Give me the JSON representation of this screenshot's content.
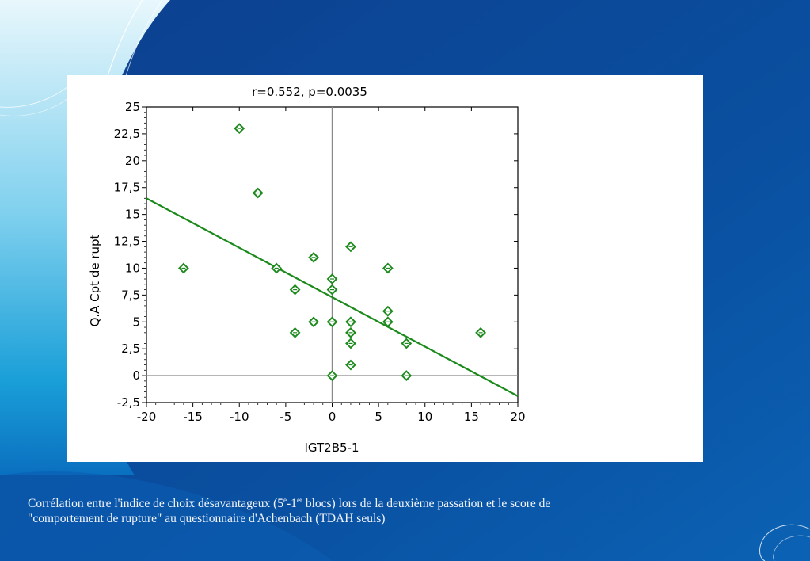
{
  "slide": {
    "caption": {
      "line1_a": "Corrélation entre l'indice de choix désavantageux (5",
      "sup1": "e",
      "line1_b": "-1",
      "sup2": "er",
      "line1_c": " blocs) lors de la deuxième passation  et le score de",
      "line2": "\"comportement de rupture\" au questionnaire d'Achenbach (TDAH seuls)"
    },
    "colors": {
      "background": "#0a4fa0",
      "marker": "#1f8a1f",
      "fit_line": "#1a8a1a",
      "caption_text": "#f2f5fb"
    }
  },
  "chart_data": {
    "type": "scatter",
    "title": "r=0.552, p=0.0035",
    "xlabel": "IGT2B5-1",
    "ylabel": "Q.A  Cpt de rupt",
    "xlim": [
      -20,
      20
    ],
    "ylim": [
      -2.5,
      25
    ],
    "x_ticks": [
      -20,
      -15,
      -10,
      -5,
      0,
      5,
      10,
      15,
      20
    ],
    "x_tick_labels": [
      "-20",
      "-15",
      "-10",
      "-5",
      "0",
      "5",
      "10",
      "15",
      "20"
    ],
    "y_ticks": [
      -2.5,
      0,
      2.5,
      5,
      7.5,
      10,
      12.5,
      15,
      17.5,
      20,
      22.5,
      25
    ],
    "y_tick_labels": [
      "-2,5",
      "0",
      "2,5",
      "5",
      "7,5",
      "10",
      "12,5",
      "15",
      "17,5",
      "20",
      "22,5",
      "25"
    ],
    "reference_lines": {
      "x": 0,
      "y": 0
    },
    "grid": false,
    "marker": "diamond",
    "points": [
      {
        "x": -16,
        "y": 10
      },
      {
        "x": -10,
        "y": 23
      },
      {
        "x": -8,
        "y": 17
      },
      {
        "x": -6,
        "y": 10
      },
      {
        "x": -4,
        "y": 8
      },
      {
        "x": -4,
        "y": 4
      },
      {
        "x": -2,
        "y": 11
      },
      {
        "x": -2,
        "y": 5
      },
      {
        "x": 0,
        "y": 9
      },
      {
        "x": 0,
        "y": 8
      },
      {
        "x": 0,
        "y": 5
      },
      {
        "x": 0,
        "y": 0
      },
      {
        "x": 2,
        "y": 12
      },
      {
        "x": 2,
        "y": 5
      },
      {
        "x": 2,
        "y": 4
      },
      {
        "x": 2,
        "y": 3
      },
      {
        "x": 2,
        "y": 1
      },
      {
        "x": 6,
        "y": 10
      },
      {
        "x": 6,
        "y": 6
      },
      {
        "x": 6,
        "y": 5
      },
      {
        "x": 8,
        "y": 3
      },
      {
        "x": 8,
        "y": 0
      },
      {
        "x": 16,
        "y": 4
      }
    ],
    "fit_line": {
      "x": [
        -20,
        20
      ],
      "y": [
        16.5,
        -1.9
      ]
    }
  }
}
